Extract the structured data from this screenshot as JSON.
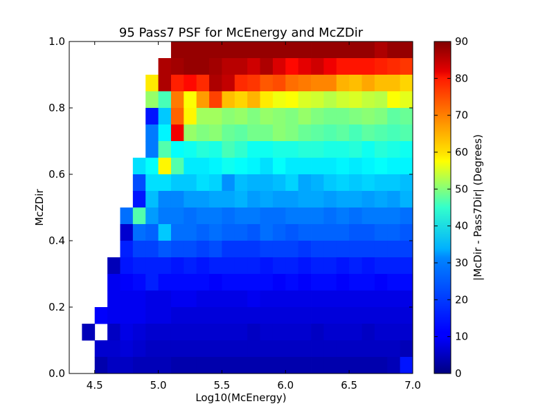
{
  "chart_data": {
    "type": "heatmap",
    "title": "95 Pass7 PSF for McEnergy and McZDir",
    "xlabel": "Log10(McEnergy)",
    "ylabel": "McZDir",
    "colorbar_label": "|McDir - Pass7Dir| (Degrees)",
    "colormap": "jet",
    "xlim": [
      4.3,
      7.0
    ],
    "ylim": [
      0.0,
      1.0
    ],
    "clim": [
      0,
      90
    ],
    "x_bin_width": 0.1,
    "y_bin_width": 0.05,
    "x_bin_starts": [
      4.3,
      4.4,
      4.5,
      4.6,
      4.7,
      4.8,
      4.9,
      5.0,
      5.1,
      5.2,
      5.3,
      5.4,
      5.5,
      5.6,
      5.7,
      5.8,
      5.9,
      6.0,
      6.1,
      6.2,
      6.3,
      6.4,
      6.5,
      6.6,
      6.7,
      6.8,
      6.9
    ],
    "y_bin_starts": [
      0.0,
      0.05,
      0.1,
      0.15,
      0.2,
      0.25,
      0.3,
      0.35,
      0.4,
      0.45,
      0.5,
      0.55,
      0.6,
      0.65,
      0.7,
      0.75,
      0.8,
      0.85,
      0.9,
      0.95
    ],
    "x_ticks": [
      "4.5",
      "5.0",
      "5.5",
      "6.0",
      "6.5",
      "7.0"
    ],
    "x_tick_values": [
      4.5,
      5.0,
      5.5,
      6.0,
      6.5,
      7.0
    ],
    "y_ticks": [
      "0.0",
      "0.2",
      "0.4",
      "0.6",
      "0.8",
      "1.0"
    ],
    "y_tick_values": [
      0.0,
      0.2,
      0.4,
      0.6,
      0.8,
      1.0
    ],
    "colorbar_ticks": [
      "0",
      "10",
      "20",
      "30",
      "40",
      "50",
      "60",
      "70",
      "80",
      "90"
    ],
    "colorbar_tick_values": [
      0,
      10,
      20,
      30,
      40,
      50,
      60,
      70,
      80,
      90
    ],
    "values_note_rows": "rows ordered from y=0.95 (top) down to y=0.0 (bottom); null = empty bin",
    "values": [
      [
        null,
        null,
        null,
        null,
        null,
        null,
        null,
        null,
        88,
        88,
        88,
        88,
        88,
        88,
        88,
        88,
        88,
        88,
        88,
        88,
        88,
        88,
        88,
        88,
        86,
        88,
        88
      ],
      [
        null,
        null,
        null,
        null,
        null,
        null,
        null,
        86,
        87,
        88,
        88,
        87,
        85,
        85,
        83,
        86,
        82,
        78,
        81,
        83,
        80,
        77,
        77,
        77,
        76,
        75,
        74
      ],
      [
        null,
        null,
        null,
        null,
        null,
        null,
        58,
        86,
        76,
        78,
        75,
        86,
        84,
        75,
        74,
        71,
        72,
        69,
        68,
        67,
        67,
        63,
        62,
        64,
        62,
        62,
        60
      ],
      [
        null,
        null,
        null,
        null,
        null,
        null,
        47,
        40,
        68,
        56,
        65,
        73,
        62,
        60,
        63,
        58,
        55,
        56,
        53,
        52,
        50,
        52,
        53,
        51,
        50,
        56,
        54
      ],
      [
        null,
        null,
        null,
        null,
        null,
        null,
        13,
        29,
        70,
        57,
        48,
        48,
        46,
        47,
        45,
        47,
        46,
        45,
        47,
        45,
        44,
        44,
        45,
        46,
        45,
        42,
        43
      ],
      [
        null,
        null,
        null,
        null,
        null,
        null,
        22,
        33,
        80,
        47,
        45,
        46,
        43,
        42,
        44,
        44,
        46,
        45,
        43,
        42,
        41,
        42,
        40,
        42,
        41,
        40,
        41
      ],
      [
        null,
        null,
        null,
        null,
        null,
        null,
        22,
        41,
        34,
        35,
        37,
        36,
        40,
        38,
        35,
        35,
        36,
        36,
        37,
        37,
        36,
        36,
        37,
        35,
        37,
        36,
        35
      ],
      [
        null,
        null,
        null,
        null,
        null,
        31,
        34,
        57,
        41,
        32,
        32,
        33,
        35,
        34,
        33,
        31,
        34,
        32,
        32,
        32,
        32,
        33,
        32,
        33,
        34,
        33,
        33
      ],
      [
        null,
        null,
        null,
        null,
        null,
        18,
        31,
        31,
        29,
        29,
        31,
        30,
        24,
        28,
        27,
        27,
        28,
        30,
        26,
        27,
        29,
        30,
        29,
        30,
        29,
        29,
        28
      ],
      [
        null,
        null,
        null,
        null,
        null,
        13,
        28,
        23,
        23,
        25,
        25,
        26,
        26,
        27,
        25,
        26,
        25,
        25,
        26,
        26,
        25,
        26,
        26,
        25,
        26,
        25,
        27
      ],
      [
        null,
        null,
        null,
        null,
        21,
        41,
        25,
        22,
        22,
        21,
        22,
        22,
        21,
        22,
        22,
        21,
        21,
        22,
        22,
        22,
        21,
        22,
        21,
        22,
        22,
        22,
        21
      ],
      [
        null,
        null,
        null,
        null,
        7,
        21,
        20,
        29,
        21,
        21,
        20,
        21,
        20,
        20,
        19,
        21,
        20,
        19,
        20,
        20,
        20,
        20,
        19,
        19,
        20,
        20,
        19
      ],
      [
        null,
        null,
        null,
        null,
        14,
        17,
        17,
        19,
        18,
        18,
        17,
        18,
        16,
        16,
        16,
        17,
        17,
        17,
        16,
        17,
        17,
        17,
        17,
        17,
        17,
        17,
        17
      ],
      [
        null,
        null,
        null,
        5,
        13,
        14,
        14,
        14,
        13,
        14,
        13,
        14,
        14,
        14,
        14,
        13,
        14,
        14,
        13,
        14,
        14,
        13,
        14,
        13,
        14,
        14,
        14
      ],
      [
        null,
        null,
        null,
        10,
        11,
        12,
        14,
        12,
        12,
        12,
        12,
        11,
        12,
        12,
        12,
        12,
        11,
        12,
        11,
        12,
        12,
        11,
        12,
        12,
        11,
        12,
        12
      ],
      [
        null,
        null,
        null,
        10,
        10,
        10,
        9,
        9,
        10,
        10,
        9,
        9,
        9,
        9,
        10,
        9,
        9,
        9,
        9,
        9,
        9,
        9,
        9,
        9,
        9,
        9,
        9
      ],
      [
        null,
        null,
        11,
        10,
        10,
        10,
        9,
        9,
        8,
        8,
        8,
        8,
        8,
        8,
        8,
        8,
        8,
        8,
        8,
        8,
        8,
        8,
        8,
        8,
        8,
        8,
        8
      ],
      [
        null,
        5,
        null,
        6,
        9,
        8,
        7,
        7,
        7,
        7,
        7,
        7,
        7,
        7,
        6,
        7,
        7,
        7,
        7,
        6,
        7,
        7,
        7,
        6,
        7,
        7,
        7
      ],
      [
        null,
        null,
        7,
        7,
        8,
        7,
        6,
        6,
        6,
        6,
        6,
        6,
        6,
        6,
        6,
        6,
        6,
        6,
        6,
        6,
        6,
        6,
        6,
        6,
        6,
        6,
        5
      ],
      [
        null,
        null,
        4,
        6,
        6,
        5,
        5,
        5,
        4,
        4,
        4,
        4,
        4,
        4,
        4,
        4,
        4,
        4,
        4,
        4,
        4,
        4,
        4,
        4,
        4,
        5,
        13
      ]
    ]
  }
}
